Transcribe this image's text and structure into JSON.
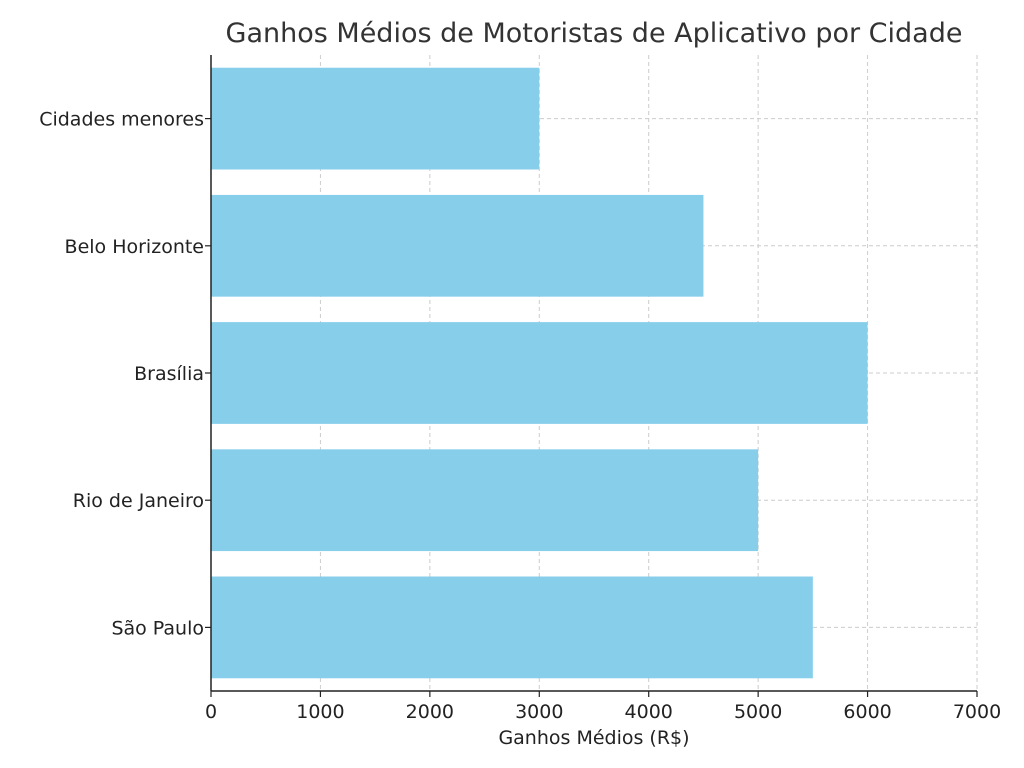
{
  "chart_data": {
    "type": "bar",
    "orientation": "horizontal",
    "title": "Ganhos Médios de Motoristas de Aplicativo por Cidade",
    "xlabel": "Ganhos Médios (R$)",
    "ylabel": "",
    "categories": [
      "São Paulo",
      "Rio de Janeiro",
      "Brasília",
      "Belo Horizonte",
      "Cidades menores"
    ],
    "values": [
      5500,
      5000,
      6000,
      4500,
      3000
    ],
    "xlim": [
      0,
      7000
    ],
    "xticks": [
      "0",
      "1000",
      "2000",
      "3000",
      "4000",
      "5000",
      "6000",
      "7000"
    ],
    "grid": true,
    "legend": "none",
    "colors": {
      "bar": "#87ceeb"
    }
  }
}
